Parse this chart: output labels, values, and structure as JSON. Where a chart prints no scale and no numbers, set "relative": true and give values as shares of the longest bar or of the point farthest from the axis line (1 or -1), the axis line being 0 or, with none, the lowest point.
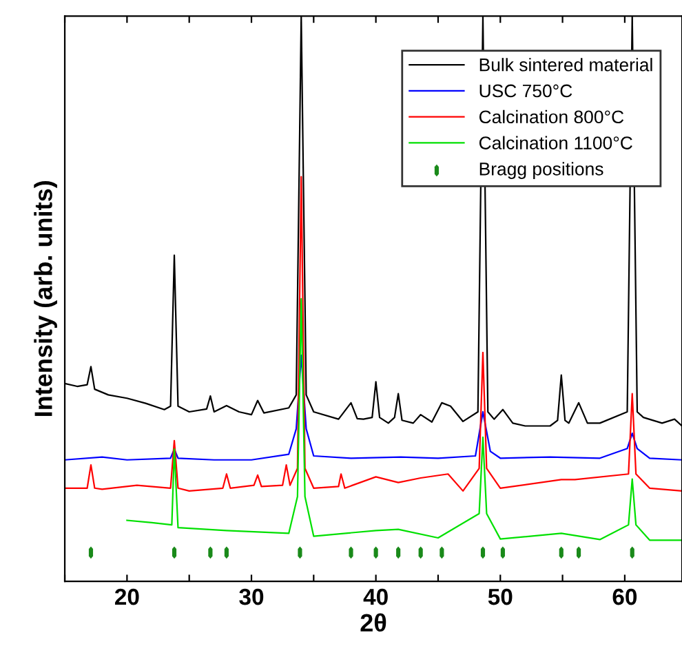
{
  "chart_data": {
    "type": "line",
    "xlabel": "2θ",
    "ylabel": "Intensity (arb. units)",
    "relative": true,
    "xlim": [
      15,
      64.6
    ],
    "xticks": [
      {
        "value": 15,
        "label": null
      },
      20,
      {
        "value": 25,
        "label": null
      },
      30,
      {
        "value": 35,
        "label": null
      },
      40,
      {
        "value": 45,
        "label": null
      },
      50,
      {
        "value": 55,
        "label": null
      },
      60
    ],
    "legend": "top right",
    "grid": false,
    "series": [
      {
        "name": "Bulk sintered material",
        "color": "#000000",
        "x": [
          15,
          16,
          16.8,
          17.1,
          17.4,
          18.5,
          20,
          21.5,
          23,
          23.5,
          23.8,
          24.1,
          25,
          26.4,
          26.7,
          27,
          28,
          29,
          30,
          30.5,
          31,
          33,
          33.6,
          34,
          34.4,
          35,
          37,
          38,
          38.5,
          39,
          39.7,
          40,
          40.3,
          41,
          41.5,
          41.8,
          42.1,
          43,
          43.6,
          44.5,
          45.3,
          46,
          47,
          48.2,
          48.6,
          49,
          49.5,
          50.2,
          51,
          52,
          54,
          54.6,
          54.9,
          55.2,
          55.5,
          56.3,
          57,
          58,
          60.2,
          60.6,
          61,
          61.5,
          63,
          64,
          64.6
        ],
        "values": [
          0.35,
          0.345,
          0.348,
          0.38,
          0.34,
          0.33,
          0.324,
          0.315,
          0.304,
          0.31,
          0.577,
          0.31,
          0.3,
          0.305,
          0.328,
          0.3,
          0.311,
          0.3,
          0.295,
          0.32,
          0.298,
          0.307,
          0.33,
          1.0,
          0.33,
          0.3,
          0.287,
          0.316,
          0.288,
          0.287,
          0.29,
          0.353,
          0.29,
          0.28,
          0.29,
          0.332,
          0.285,
          0.28,
          0.295,
          0.282,
          0.316,
          0.31,
          0.283,
          0.3,
          1.0,
          0.3,
          0.287,
          0.304,
          0.28,
          0.275,
          0.275,
          0.285,
          0.365,
          0.285,
          0.28,
          0.316,
          0.28,
          0.28,
          0.3,
          1.0,
          0.3,
          0.29,
          0.28,
          0.287,
          0.275
        ]
      },
      {
        "name": "USC 750°C",
        "color": "#0000ff",
        "x": [
          15,
          18,
          20,
          23.5,
          23.8,
          24.1,
          27,
          30,
          33,
          33.6,
          34,
          34.4,
          35,
          38,
          42,
          45,
          48,
          48.6,
          49.2,
          50,
          54,
          58,
          60.2,
          60.6,
          61,
          62,
          64.6
        ],
        "values": [
          0.215,
          0.22,
          0.215,
          0.218,
          0.234,
          0.218,
          0.215,
          0.215,
          0.225,
          0.27,
          0.4,
          0.27,
          0.222,
          0.218,
          0.22,
          0.218,
          0.222,
          0.3,
          0.23,
          0.218,
          0.22,
          0.218,
          0.235,
          0.262,
          0.235,
          0.218,
          0.215
        ]
      },
      {
        "name": "Calcination 800°C",
        "color": "#ff0000",
        "x": [
          15,
          16.8,
          17.1,
          17.4,
          18,
          20.8,
          23.5,
          23.8,
          24.1,
          25,
          27.7,
          28,
          28.3,
          30.2,
          30.5,
          30.8,
          32.5,
          32.8,
          33.1,
          33.7,
          34,
          34.3,
          35,
          37,
          37.2,
          37.5,
          40,
          41.8,
          43.6,
          45.8,
          47,
          48.3,
          48.6,
          48.9,
          50,
          54.9,
          56,
          60.3,
          60.6,
          60.9,
          62,
          64.6
        ],
        "values": [
          0.165,
          0.165,
          0.206,
          0.165,
          0.163,
          0.17,
          0.165,
          0.249,
          0.165,
          0.16,
          0.165,
          0.19,
          0.165,
          0.17,
          0.188,
          0.168,
          0.17,
          0.206,
          0.17,
          0.2,
          0.716,
          0.2,
          0.165,
          0.168,
          0.19,
          0.165,
          0.185,
          0.175,
          0.183,
          0.19,
          0.16,
          0.2,
          0.405,
          0.2,
          0.165,
          0.18,
          0.18,
          0.19,
          0.332,
          0.19,
          0.165,
          0.16
        ]
      },
      {
        "name": "Calcination 1100°C",
        "color": "#00e000",
        "x": [
          20,
          22,
          23.6,
          23.8,
          24.1,
          28,
          33,
          33.7,
          34,
          34.3,
          35,
          40,
          41.8,
          45,
          48.3,
          48.6,
          48.9,
          50,
          54.9,
          58,
          60.3,
          60.6,
          60.9,
          62,
          64.6
        ],
        "values": [
          0.108,
          0.104,
          0.1,
          0.234,
          0.095,
          0.09,
          0.085,
          0.15,
          0.5,
          0.15,
          0.08,
          0.09,
          0.092,
          0.077,
          0.12,
          0.255,
          0.12,
          0.075,
          0.085,
          0.074,
          0.1,
          0.181,
          0.1,
          0.073,
          0.073
        ]
      },
      {
        "name": "Bragg positions",
        "type": "scatter",
        "color": "#1a8a1a",
        "x": [
          17.1,
          23.8,
          26.7,
          28.0,
          33.9,
          38.0,
          40.0,
          41.8,
          43.6,
          45.3,
          48.6,
          50.2,
          54.9,
          56.3,
          60.6
        ],
        "values": [
          0.051,
          0.051,
          0.051,
          0.051,
          0.051,
          0.051,
          0.051,
          0.051,
          0.051,
          0.051,
          0.051,
          0.051,
          0.051,
          0.051,
          0.051
        ]
      }
    ]
  }
}
